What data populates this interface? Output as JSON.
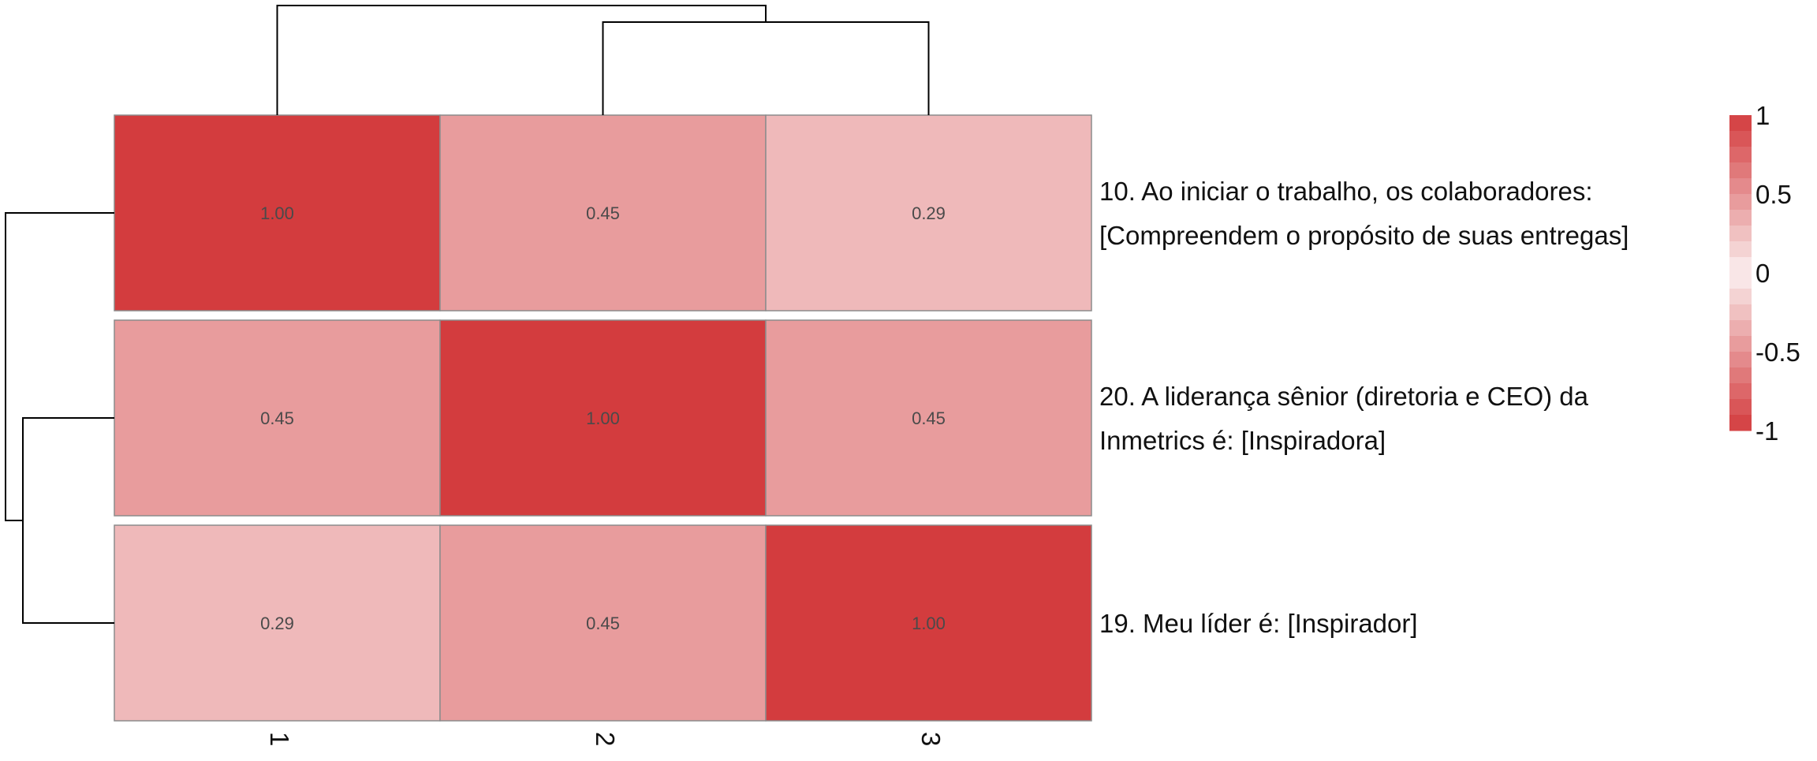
{
  "chart_data": {
    "type": "heatmap",
    "columns": [
      "1",
      "2",
      "3"
    ],
    "rows": [
      {
        "col_index": 1,
        "label_lines": [
          "10. Ao iniciar o trabalho, os colaboradores:",
          "[Compreendem o propósito de suas entregas]"
        ]
      },
      {
        "col_index": 2,
        "label_lines": [
          "20. A liderança sênior (diretoria e CEO) da",
          "Inmetrics é: [Inspiradora]"
        ]
      },
      {
        "col_index": 3,
        "label_lines": [
          "19. Meu líder é: [Inspirador]"
        ]
      }
    ],
    "values": [
      [
        1.0,
        0.45,
        0.29
      ],
      [
        0.45,
        1.0,
        0.45
      ],
      [
        0.29,
        0.45,
        1.0
      ]
    ],
    "cell_labels": [
      [
        "1.00",
        "0.45",
        "0.29"
      ],
      [
        "0.45",
        "1.00",
        "0.45"
      ],
      [
        "0.29",
        "0.45",
        "1.00"
      ]
    ],
    "color_scale": {
      "min": -1,
      "max": 1,
      "ticks": [
        "1",
        "0.5",
        "0",
        "-0.5",
        "-1"
      ],
      "high_color": "#d33c3e",
      "mid_color": "#fbf1f1",
      "low_color": "#d33c3e"
    },
    "dendrogram": {
      "columns": "top",
      "rows": "left"
    },
    "grid": false,
    "legend_placement": "right"
  }
}
